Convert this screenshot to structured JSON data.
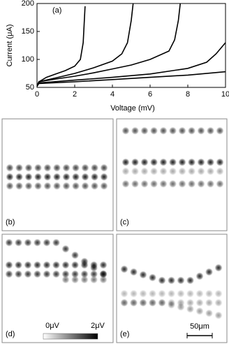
{
  "chart_data": {
    "type": "line",
    "annotation": "(a)",
    "xlabel": "Voltage (mV)",
    "ylabel": "Current (μA)",
    "xlim": [
      0,
      10
    ],
    "xticks": [
      0,
      2,
      4,
      6,
      8,
      10
    ],
    "ylim": [
      50,
      200
    ],
    "yticks": [
      50,
      100,
      150,
      200
    ],
    "series": [
      {
        "color": "#000000",
        "x": [
          0,
          0.1,
          0.5,
          1,
          1.5,
          2,
          2.3,
          2.45,
          2.55
        ],
        "values": [
          52,
          60,
          68,
          74,
          80,
          88,
          100,
          130,
          195
        ]
      },
      {
        "color": "#000000",
        "x": [
          0,
          0.1,
          1,
          2,
          3,
          4,
          4.5,
          4.8,
          5.0,
          5.1
        ],
        "values": [
          52,
          60,
          67,
          75,
          85,
          97,
          110,
          130,
          170,
          200
        ]
      },
      {
        "color": "#000000",
        "x": [
          0,
          0.1,
          1,
          2,
          3,
          4,
          5,
          6,
          7,
          7.3,
          7.5,
          7.6
        ],
        "values": [
          52,
          60,
          65,
          70,
          76,
          83,
          90,
          100,
          115,
          135,
          170,
          200
        ]
      },
      {
        "color": "#000000",
        "x": [
          0,
          0.1,
          2,
          4,
          6,
          8,
          9,
          9.5,
          10
        ],
        "values": [
          52,
          58,
          63,
          68,
          74,
          84,
          95,
          110,
          130
        ]
      },
      {
        "color": "#000000",
        "x": [
          0,
          0.1,
          2,
          4,
          6,
          8,
          10
        ],
        "values": [
          52,
          57,
          60,
          64,
          68,
          72,
          78
        ]
      }
    ]
  },
  "panels": [
    {
      "label": "(b)"
    },
    {
      "label": "(c)"
    },
    {
      "label": "(d)"
    },
    {
      "label": "(e)"
    }
  ],
  "colorbar": {
    "min_label": "0μV",
    "max_label": "2μV"
  },
  "scale_bar": {
    "label": "50μm"
  }
}
